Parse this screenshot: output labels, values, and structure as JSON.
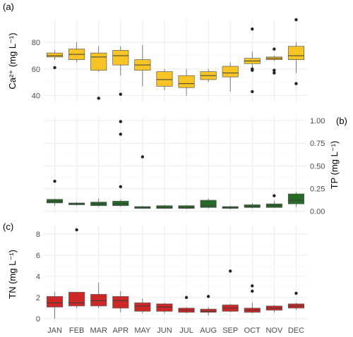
{
  "chart_data": {
    "type": "boxplot",
    "categories": [
      "JAN",
      "FEB",
      "MAR",
      "APR",
      "MAY",
      "JUN",
      "JUL",
      "AUG",
      "SEP",
      "OCT",
      "NOV",
      "DEC"
    ],
    "panels": [
      {
        "label": "(a)",
        "ylabel": "Ca²⁺ (mg L⁻¹)",
        "ylim": [
          35,
          97
        ],
        "yticks": [
          40,
          60,
          80
        ],
        "ytick_labels": [
          "40",
          "60",
          "80"
        ],
        "ytick_side": "left",
        "color": "#f6c424",
        "boxes": [
          {
            "min": 67,
            "q1": 69,
            "median": 70,
            "q3": 72,
            "max": 74,
            "outliers": [
              61
            ]
          },
          {
            "min": 65,
            "q1": 67,
            "median": 71,
            "q3": 75,
            "max": 80,
            "outliers": []
          },
          {
            "min": 58,
            "q1": 59,
            "median": 69,
            "q3": 72,
            "max": 77,
            "outliers": [
              38
            ]
          },
          {
            "min": 55,
            "q1": 63,
            "median": 70,
            "q3": 74,
            "max": 77,
            "outliers": [
              41
            ]
          },
          {
            "min": 47,
            "q1": 59,
            "median": 63,
            "q3": 67,
            "max": 78,
            "outliers": []
          },
          {
            "min": 44,
            "q1": 47,
            "median": 52,
            "q3": 58,
            "max": 60,
            "outliers": []
          },
          {
            "min": 40,
            "q1": 46,
            "median": 49,
            "q3": 55,
            "max": 60,
            "outliers": []
          },
          {
            "min": 50,
            "q1": 52,
            "median": 55,
            "q3": 58,
            "max": 60,
            "outliers": []
          },
          {
            "min": 43,
            "q1": 54,
            "median": 57,
            "q3": 62,
            "max": 65,
            "outliers": []
          },
          {
            "min": 61,
            "q1": 64,
            "median": 66,
            "q3": 68,
            "max": 73,
            "outliers": [
              43,
              59,
              60,
              90
            ]
          },
          {
            "min": 66,
            "q1": 67,
            "median": 68,
            "q3": 69,
            "max": 70,
            "outliers": [
              57,
              59,
              75
            ]
          },
          {
            "min": 57,
            "q1": 67,
            "median": 70,
            "q3": 77,
            "max": 80,
            "outliers": [
              49,
              97
            ]
          }
        ]
      },
      {
        "label": "(b)",
        "ylabel": "TP (mg L⁻¹)",
        "ylim": [
          -0.02,
          1.04
        ],
        "yticks": [
          0,
          0.25,
          0.5,
          0.75,
          1
        ],
        "ytick_labels": [
          "0.00",
          "0.25",
          "0.50",
          "0.75",
          "1.00"
        ],
        "ytick_side": "right",
        "color": "#266b26",
        "boxes": [
          {
            "min": 0.06,
            "q1": 0.09,
            "median": 0.11,
            "q3": 0.13,
            "max": 0.14,
            "outliers": [
              0.33
            ]
          },
          {
            "min": 0.06,
            "q1": 0.07,
            "median": 0.08,
            "q3": 0.09,
            "max": 0.1,
            "outliers": []
          },
          {
            "min": 0.05,
            "q1": 0.06,
            "median": 0.08,
            "q3": 0.1,
            "max": 0.14,
            "outliers": []
          },
          {
            "min": 0.05,
            "q1": 0.06,
            "median": 0.08,
            "q3": 0.11,
            "max": 0.13,
            "outliers": [
              0.27,
              0.85,
              0.99
            ]
          },
          {
            "min": 0.03,
            "q1": 0.03,
            "median": 0.04,
            "q3": 0.05,
            "max": 0.06,
            "outliers": [
              0.6
            ]
          },
          {
            "min": 0.03,
            "q1": 0.03,
            "median": 0.04,
            "q3": 0.06,
            "max": 0.07,
            "outliers": []
          },
          {
            "min": 0.02,
            "q1": 0.03,
            "median": 0.04,
            "q3": 0.06,
            "max": 0.07,
            "outliers": []
          },
          {
            "min": 0.03,
            "q1": 0.04,
            "median": 0.06,
            "q3": 0.12,
            "max": 0.14,
            "outliers": []
          },
          {
            "min": 0.02,
            "q1": 0.03,
            "median": 0.04,
            "q3": 0.05,
            "max": 0.06,
            "outliers": []
          },
          {
            "min": 0.03,
            "q1": 0.04,
            "median": 0.05,
            "q3": 0.07,
            "max": 0.09,
            "outliers": []
          },
          {
            "min": 0.04,
            "q1": 0.04,
            "median": 0.06,
            "q3": 0.08,
            "max": 0.11,
            "outliers": [
              0.17
            ]
          },
          {
            "min": 0.05,
            "q1": 0.08,
            "median": 0.12,
            "q3": 0.19,
            "max": 0.21,
            "outliers": []
          }
        ]
      },
      {
        "label": "(c)",
        "ylabel": "TN (mg L⁻¹)",
        "ylim": [
          -0.4,
          8.8
        ],
        "yticks": [
          0,
          2,
          4,
          6,
          8
        ],
        "ytick_labels": [
          "0",
          "2",
          "4",
          "6",
          "8"
        ],
        "ytick_side": "left",
        "color": "#cc2828",
        "boxes": [
          {
            "min": 0.0,
            "q1": 1.1,
            "median": 1.5,
            "q3": 2.1,
            "max": 2.5,
            "outliers": []
          },
          {
            "min": 1.0,
            "q1": 1.2,
            "median": 1.5,
            "q3": 2.5,
            "max": 2.5,
            "outliers": [
              8.4
            ]
          },
          {
            "min": 1.0,
            "q1": 1.2,
            "median": 1.7,
            "q3": 2.3,
            "max": 3.4,
            "outliers": []
          },
          {
            "min": 0.6,
            "q1": 1.0,
            "median": 1.7,
            "q3": 2.1,
            "max": 2.6,
            "outliers": []
          },
          {
            "min": 0.5,
            "q1": 0.7,
            "median": 1.2,
            "q3": 1.5,
            "max": 1.9,
            "outliers": []
          },
          {
            "min": 0.5,
            "q1": 0.7,
            "median": 1.1,
            "q3": 1.4,
            "max": 1.5,
            "outliers": []
          },
          {
            "min": 0.5,
            "q1": 0.6,
            "median": 0.8,
            "q3": 1.0,
            "max": 1.1,
            "outliers": [
              2.0
            ]
          },
          {
            "min": 0.3,
            "q1": 0.6,
            "median": 0.7,
            "q3": 0.9,
            "max": 1.1,
            "outliers": [
              2.1
            ]
          },
          {
            "min": 0.6,
            "q1": 0.7,
            "median": 1.0,
            "q3": 1.3,
            "max": 1.4,
            "outliers": [
              4.5
            ]
          },
          {
            "min": 0.5,
            "q1": 0.6,
            "median": 0.8,
            "q3": 1.0,
            "max": 1.5,
            "outliers": [
              2.6,
              3.1
            ]
          },
          {
            "min": 0.6,
            "q1": 0.8,
            "median": 1.0,
            "q3": 1.2,
            "max": 1.3,
            "outliers": []
          },
          {
            "min": 0.8,
            "q1": 1.0,
            "median": 1.2,
            "q3": 1.4,
            "max": 1.5,
            "outliers": [
              2.4
            ]
          }
        ]
      }
    ],
    "grid": true,
    "legend": "none"
  }
}
